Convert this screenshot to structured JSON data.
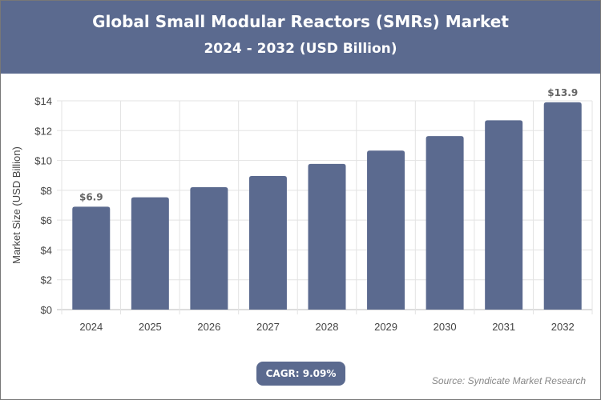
{
  "header": {
    "title": "Global Small Modular Reactors (SMRs) Market",
    "subtitle": "2024 - 2032 (USD Billion)"
  },
  "cagr": "CAGR: 9.09%",
  "source": "Source: Syndicate Market Research",
  "colors": {
    "bar": "#5b6a8f",
    "header": "#5b6a8f"
  },
  "chart_data": {
    "type": "bar",
    "title": "Global Small Modular Reactors (SMRs) Market",
    "subtitle": "2024 - 2032 (USD Billion)",
    "ylabel": "Market Size (USD Billion)",
    "xlabel": "",
    "ylim": [
      0,
      14
    ],
    "yticks": [
      "$0",
      "$2",
      "$4",
      "$6",
      "$8",
      "$10",
      "$12",
      "$14"
    ],
    "grid": true,
    "categories": [
      "2024",
      "2025",
      "2026",
      "2027",
      "2028",
      "2029",
      "2030",
      "2031",
      "2032"
    ],
    "values": [
      6.9,
      7.53,
      8.21,
      8.96,
      9.77,
      10.66,
      11.63,
      12.69,
      13.9
    ],
    "data_labels": {
      "0": "$6.9",
      "8": "$13.9"
    }
  }
}
